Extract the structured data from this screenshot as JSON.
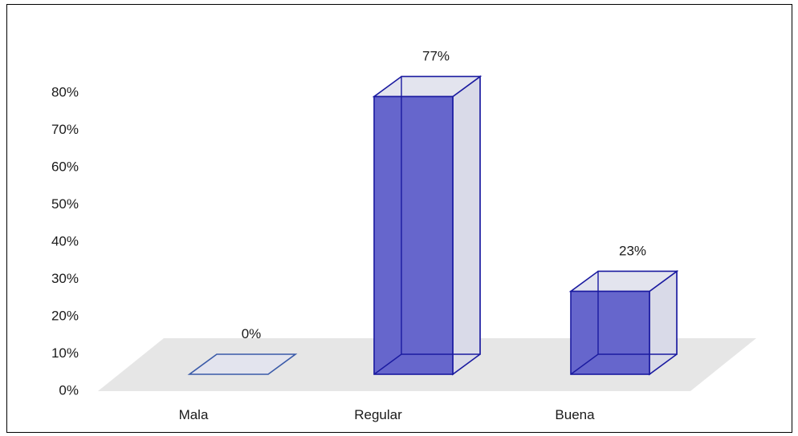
{
  "chart_data": {
    "type": "bar",
    "style": "3d-column",
    "categories": [
      "Mala",
      "Regular",
      "Buena"
    ],
    "values": [
      0,
      77,
      23
    ],
    "data_labels": [
      "0%",
      "77%",
      "23%"
    ],
    "y_ticks": [
      "0%",
      "10%",
      "20%",
      "30%",
      "40%",
      "50%",
      "60%",
      "70%",
      "80%"
    ],
    "ylim": [
      0,
      80
    ],
    "grid": false,
    "legend": "none",
    "colors": {
      "front": "#6666cc",
      "side": "#d9dae8",
      "top": "#e3e4ee",
      "edge": "#1a1aa0",
      "floor": "#e6e6e6",
      "zero_edge": "#3a5aa8"
    }
  }
}
